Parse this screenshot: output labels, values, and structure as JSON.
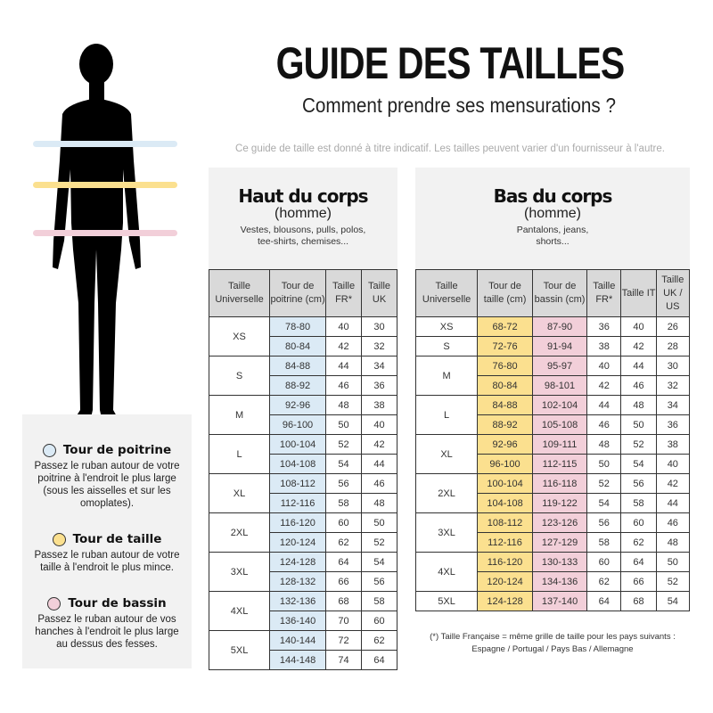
{
  "header": {
    "title": "GUIDE DES TAILLES",
    "subtitle": "Comment prendre ses mensurations ?",
    "note": "Ce guide de taille est donné à titre indicatif. Les tailles peuvent varier d'un fournisseur à l'autre."
  },
  "colors": {
    "chest": "#dbeaf5",
    "waist": "#fbe08f",
    "hips": "#f2cfd9",
    "panel": "#f2f2f2",
    "header_cell": "#d9d9d9"
  },
  "legend": [
    {
      "title": "Tour de poitrine",
      "color": "#dbeaf5",
      "text": "Passez le ruban autour de votre poitrine à l'endroit le plus large (sous les aisselles et sur les omoplates)."
    },
    {
      "title": "Tour de taille",
      "color": "#fbe08f",
      "text": "Passez le ruban autour de votre taille à l'endroit le plus mince."
    },
    {
      "title": "Tour de bassin",
      "color": "#f2cfd9",
      "text": "Passez le ruban autour de vos hanches à l'endroit le plus large au dessus des fesses."
    }
  ],
  "top": {
    "title": "Haut du corps",
    "subtitle": "(homme)",
    "desc": "Vestes, blousons, pulls, polos, tee-shirts, chemises...",
    "columns": [
      "Taille Universelle",
      "Tour de poitrine (cm)",
      "Taille FR*",
      "Taille UK"
    ],
    "groups": [
      {
        "size": "XS",
        "rows": [
          [
            "78-80",
            "40",
            "30"
          ],
          [
            "80-84",
            "42",
            "32"
          ]
        ]
      },
      {
        "size": "S",
        "rows": [
          [
            "84-88",
            "44",
            "34"
          ],
          [
            "88-92",
            "46",
            "36"
          ]
        ]
      },
      {
        "size": "M",
        "rows": [
          [
            "92-96",
            "48",
            "38"
          ],
          [
            "96-100",
            "50",
            "40"
          ]
        ]
      },
      {
        "size": "L",
        "rows": [
          [
            "100-104",
            "52",
            "42"
          ],
          [
            "104-108",
            "54",
            "44"
          ]
        ]
      },
      {
        "size": "XL",
        "rows": [
          [
            "108-112",
            "56",
            "46"
          ],
          [
            "112-116",
            "58",
            "48"
          ]
        ]
      },
      {
        "size": "2XL",
        "rows": [
          [
            "116-120",
            "60",
            "50"
          ],
          [
            "120-124",
            "62",
            "52"
          ]
        ]
      },
      {
        "size": "3XL",
        "rows": [
          [
            "124-128",
            "64",
            "54"
          ],
          [
            "128-132",
            "66",
            "56"
          ]
        ]
      },
      {
        "size": "4XL",
        "rows": [
          [
            "132-136",
            "68",
            "58"
          ],
          [
            "136-140",
            "70",
            "60"
          ]
        ]
      },
      {
        "size": "5XL",
        "rows": [
          [
            "140-144",
            "72",
            "62"
          ],
          [
            "144-148",
            "74",
            "64"
          ]
        ]
      }
    ]
  },
  "bottom": {
    "title": "Bas du corps",
    "subtitle": "(homme)",
    "desc": "Pantalons, jeans, shorts...",
    "columns": [
      "Taille Universelle",
      "Tour de taille (cm)",
      "Tour de bassin (cm)",
      "Taille FR*",
      "Taille IT",
      "Taille UK / US"
    ],
    "groups": [
      {
        "size": "XS",
        "rows": [
          [
            "68-72",
            "87-90",
            "36",
            "40",
            "26"
          ]
        ]
      },
      {
        "size": "S",
        "rows": [
          [
            "72-76",
            "91-94",
            "38",
            "42",
            "28"
          ]
        ]
      },
      {
        "size": "M",
        "rows": [
          [
            "76-80",
            "95-97",
            "40",
            "44",
            "30"
          ],
          [
            "80-84",
            "98-101",
            "42",
            "46",
            "32"
          ]
        ]
      },
      {
        "size": "L",
        "rows": [
          [
            "84-88",
            "102-104",
            "44",
            "48",
            "34"
          ],
          [
            "88-92",
            "105-108",
            "46",
            "50",
            "36"
          ]
        ]
      },
      {
        "size": "XL",
        "rows": [
          [
            "92-96",
            "109-111",
            "48",
            "52",
            "38"
          ],
          [
            "96-100",
            "112-115",
            "50",
            "54",
            "40"
          ]
        ]
      },
      {
        "size": "2XL",
        "rows": [
          [
            "100-104",
            "116-118",
            "52",
            "56",
            "42"
          ],
          [
            "104-108",
            "119-122",
            "54",
            "58",
            "44"
          ]
        ]
      },
      {
        "size": "3XL",
        "rows": [
          [
            "108-112",
            "123-126",
            "56",
            "60",
            "46"
          ],
          [
            "112-116",
            "127-129",
            "58",
            "62",
            "48"
          ]
        ]
      },
      {
        "size": "4XL",
        "rows": [
          [
            "116-120",
            "130-133",
            "60",
            "64",
            "50"
          ],
          [
            "120-124",
            "134-136",
            "62",
            "66",
            "52"
          ]
        ]
      },
      {
        "size": "5XL",
        "rows": [
          [
            "124-128",
            "137-140",
            "64",
            "68",
            "54"
          ]
        ]
      }
    ]
  },
  "footnote": {
    "line1": "(*) Taille Française = même grille de taille pour les pays suivants :",
    "line2": "Espagne / Portugal / Pays Bas / Allemagne"
  }
}
